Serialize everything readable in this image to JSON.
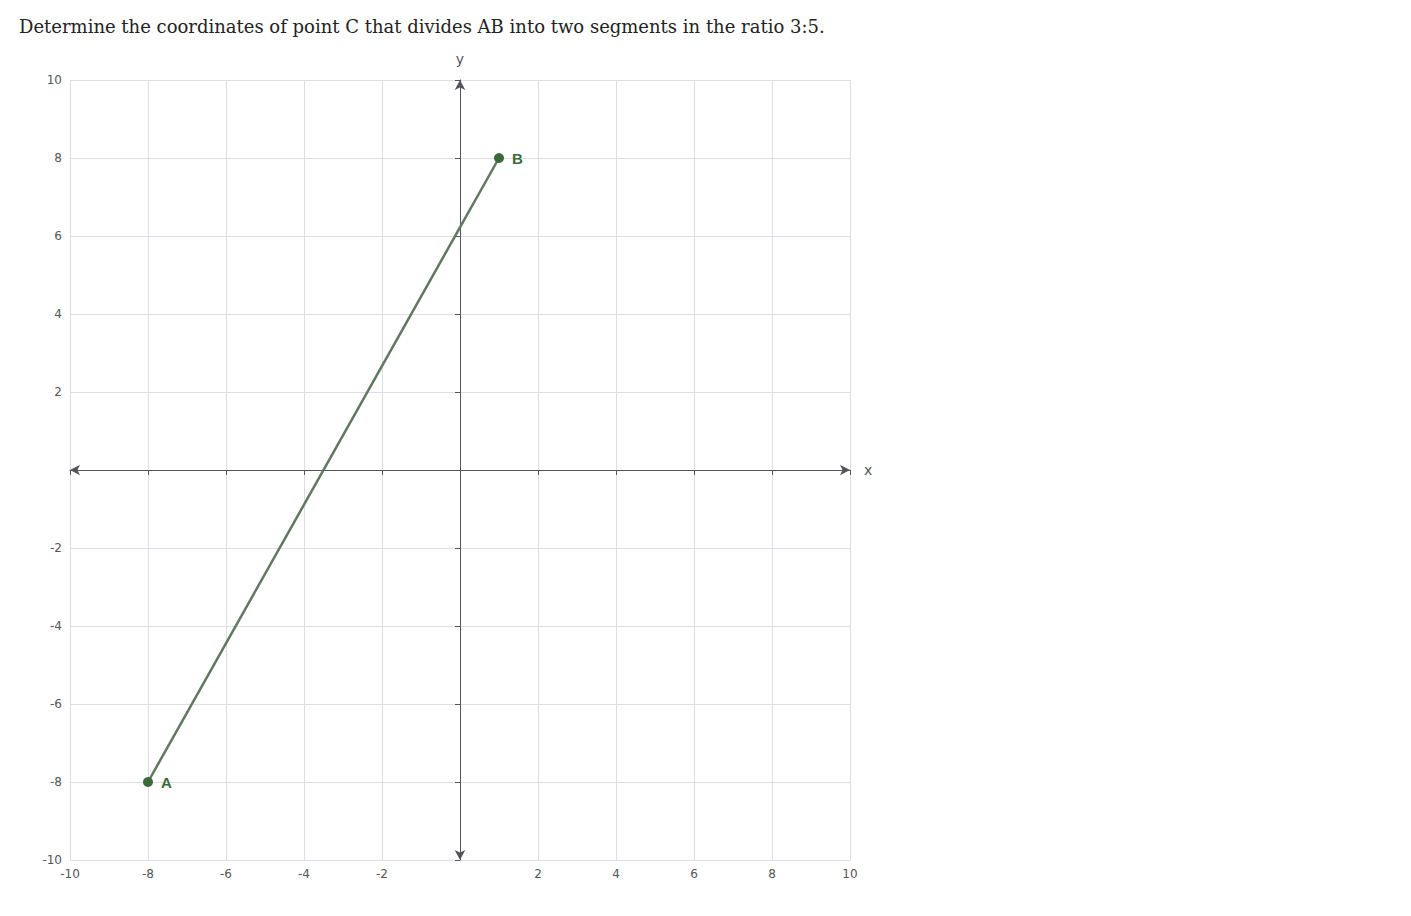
{
  "chart_data": {
    "type": "line",
    "title": "Determine the coordinates of point C that divides AB into two segments in the ratio 3:5.",
    "x_label": "x",
    "y_label": "y",
    "x": [
      -8,
      1
    ],
    "values": [
      -8,
      8
    ],
    "color": "#607860",
    "marker": "circle",
    "annotations": [
      {
        "text": "A",
        "x": -8,
        "y": -8,
        "color": "#3a6a3a"
      },
      {
        "text": "B",
        "x": 1,
        "y": 8,
        "color": "#3a6a3a"
      }
    ],
    "xlim": [
      -10,
      10
    ],
    "ylim": [
      -10,
      10
    ],
    "xticks": [
      -10,
      -8,
      -6,
      -4,
      -2,
      2,
      4,
      6,
      8,
      10
    ],
    "yticks": [
      -10,
      -8,
      -6,
      -4,
      -2,
      2,
      4,
      6,
      8,
      10
    ],
    "grid": true
  }
}
